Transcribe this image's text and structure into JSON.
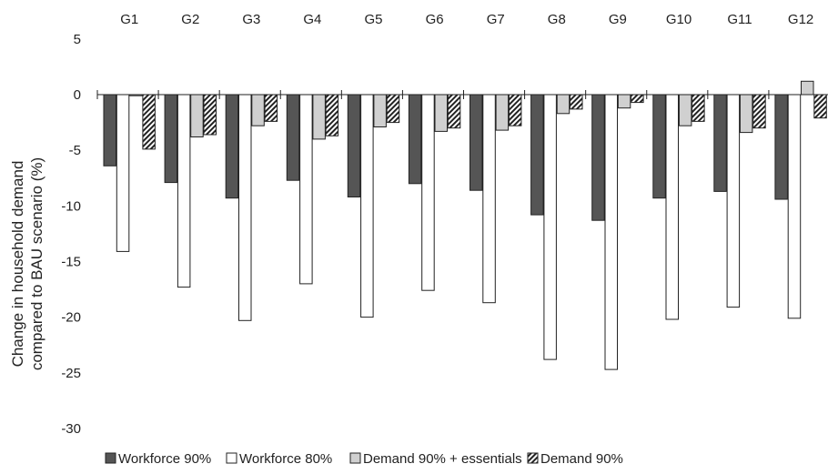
{
  "chart_data": {
    "type": "bar",
    "categories": [
      "G1",
      "G2",
      "G3",
      "G4",
      "G5",
      "G6",
      "G7",
      "G8",
      "G9",
      "G10",
      "G11",
      "G12"
    ],
    "series": [
      {
        "name": "Workforce 90%",
        "color": "#555555",
        "pattern": "solid",
        "values": [
          -6.4,
          -7.9,
          -9.3,
          -7.7,
          -9.2,
          -8.0,
          -8.6,
          -10.8,
          -11.3,
          -9.3,
          -8.7,
          -9.4
        ]
      },
      {
        "name": "Workforce 80%",
        "color": "#ffffff",
        "pattern": "outline",
        "values": [
          -14.1,
          -17.3,
          -20.3,
          -17.0,
          -20.0,
          -17.6,
          -18.7,
          -23.8,
          -24.7,
          -20.2,
          -19.1,
          -20.1
        ]
      },
      {
        "name": "Demand 90% + essentials",
        "color": "#d0d0d0",
        "pattern": "light",
        "values": [
          -0.1,
          -3.8,
          -2.8,
          -4.0,
          -2.9,
          -3.3,
          -3.2,
          -1.7,
          -1.2,
          -2.8,
          -3.4,
          1.2
        ]
      },
      {
        "name": "Demand 90%",
        "color": "#333333",
        "pattern": "hatch",
        "values": [
          -4.9,
          -3.6,
          -2.4,
          -3.7,
          -2.5,
          -3.0,
          -2.8,
          -1.3,
          -0.7,
          -2.4,
          -3.0,
          -2.1
        ]
      }
    ],
    "ylabel_lines": [
      "Change in household demand",
      "compared to BAU scenario (%)"
    ],
    "ylim": [
      -30,
      5
    ],
    "yticks": [
      5,
      0,
      -5,
      -10,
      -15,
      -20,
      -25,
      -30
    ],
    "xaxis_position": "top",
    "legend_position": "bottom",
    "grid": false
  }
}
